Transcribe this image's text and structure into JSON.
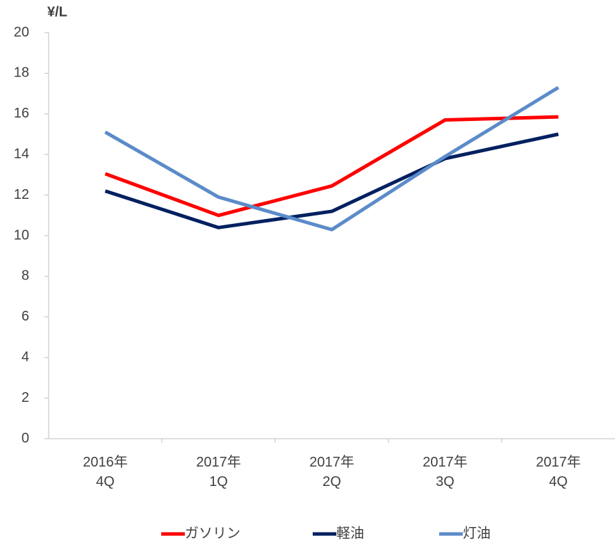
{
  "chart_data": {
    "type": "line",
    "y_label": "¥/L",
    "categories": [
      "2016年\n4Q",
      "2017年\n1Q",
      "2017年\n2Q",
      "2017年\n3Q",
      "2017年\n4Q"
    ],
    "series": [
      {
        "name": "ガソリン",
        "color": "#ff0000",
        "values": [
          13.05,
          11.0,
          12.45,
          15.7,
          15.85
        ]
      },
      {
        "name": "軽油",
        "color": "#002060",
        "values": [
          12.2,
          10.4,
          11.2,
          13.8,
          15.0
        ]
      },
      {
        "name": "灯油",
        "color": "#5b8bc9",
        "values": [
          15.1,
          11.9,
          10.3,
          13.9,
          17.3
        ]
      }
    ],
    "ylim": [
      0,
      20
    ],
    "yticks": [
      0,
      2,
      4,
      6,
      8,
      10,
      12,
      14,
      16,
      18,
      20
    ],
    "grid": false,
    "legend": "bottom"
  }
}
